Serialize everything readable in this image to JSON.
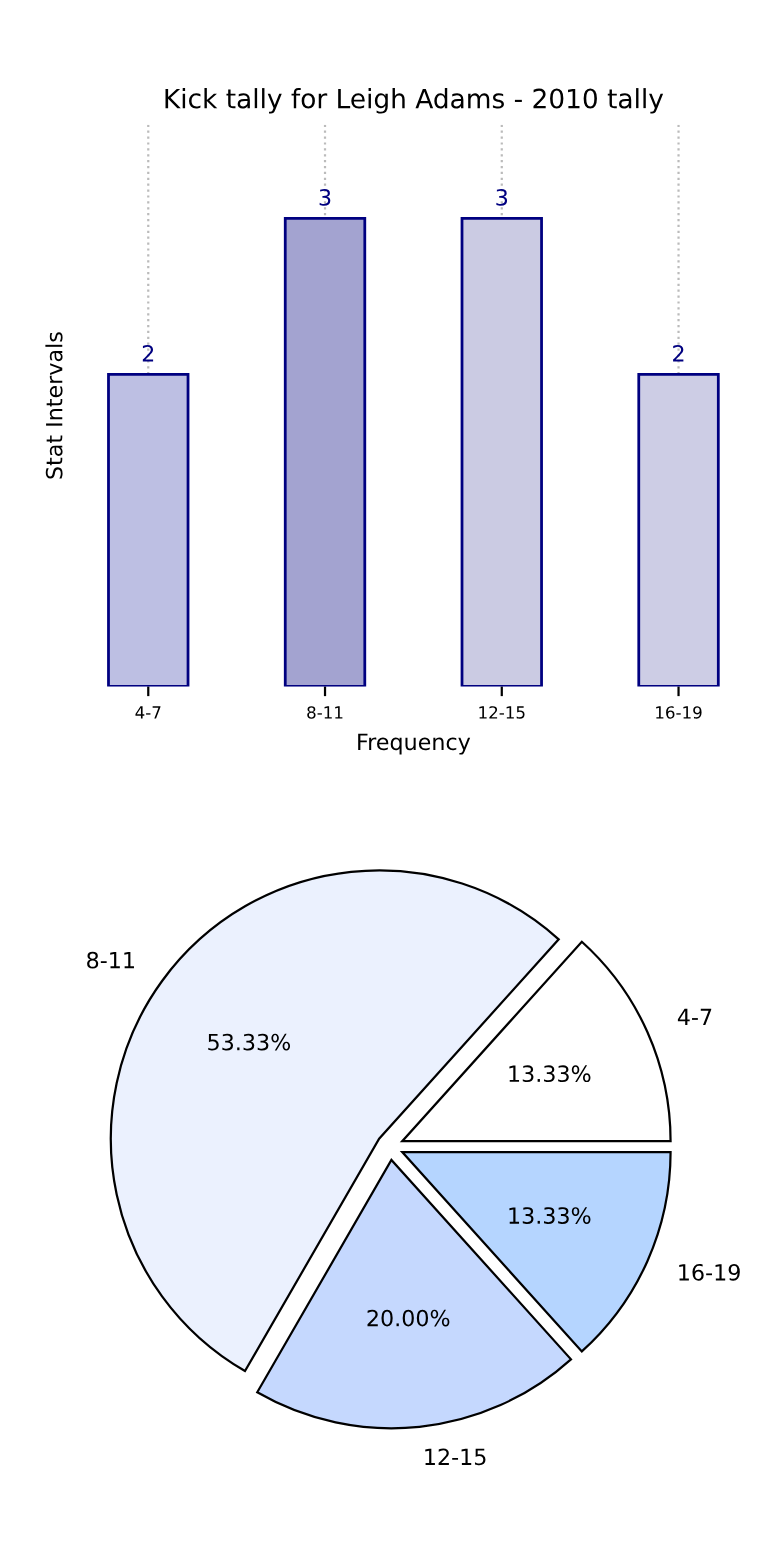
{
  "chart_data": [
    {
      "type": "bar",
      "title": "Kick tally for Leigh Adams - 2010 tally",
      "xlabel": "Frequency",
      "ylabel": "Stat Intervals",
      "categories": [
        "4-7",
        "8-11",
        "12-15",
        "16-19"
      ],
      "values": [
        2,
        3,
        3,
        2
      ],
      "colors": [
        "#bdbfe3",
        "#a3a3d0",
        "#cbcbe3",
        "#cdcde5"
      ],
      "data_labels": true,
      "grid": "x",
      "tick_labels": "x",
      "legend": false
    },
    {
      "type": "pie",
      "categories": [
        "4-7",
        "8-11",
        "12-15",
        "16-19"
      ],
      "values": [
        13.33,
        53.33,
        20.0,
        13.33
      ],
      "colors": [
        "#ffffff",
        "#ebf1fe",
        "#c5d8fe",
        "#b5d5ff"
      ],
      "value_labels": [
        "13.33%",
        "53.33%",
        "20.00%",
        "13.33%"
      ]
    }
  ]
}
